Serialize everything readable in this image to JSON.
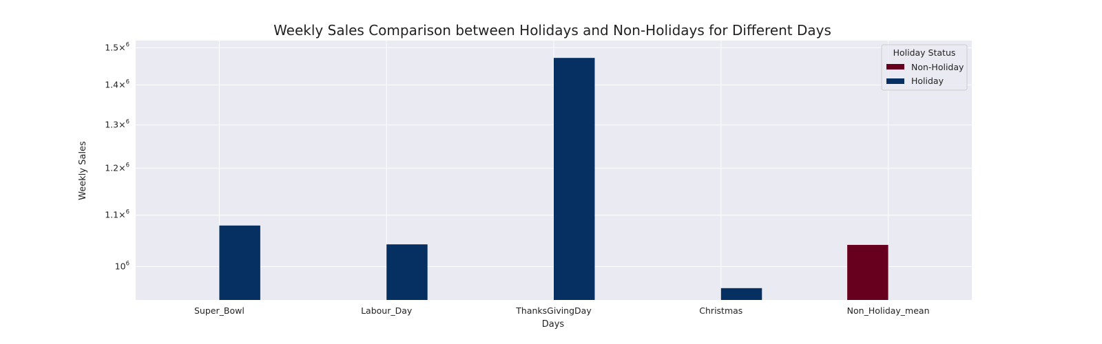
{
  "chart_data": {
    "type": "bar",
    "title": "Weekly Sales Comparison between Holidays and Non-Holidays for Different Days",
    "xlabel": "Days",
    "ylabel": "Weekly Sales",
    "yscale": "log",
    "ylim": [
      940000,
      1520000
    ],
    "yticks": [
      {
        "value": 1000000,
        "mant": "10",
        "times": "",
        "exp": "6"
      },
      {
        "value": 1100000,
        "mant": "1.1",
        "times": "×",
        "exp": "6"
      },
      {
        "value": 1200000,
        "mant": "1.2",
        "times": "×",
        "exp": "6"
      },
      {
        "value": 1300000,
        "mant": "1.3",
        "times": "×",
        "exp": "6"
      },
      {
        "value": 1400000,
        "mant": "1.4",
        "times": "×",
        "exp": "6"
      },
      {
        "value": 1500000,
        "mant": "1.5",
        "times": "×",
        "exp": "6"
      }
    ],
    "categories": [
      "Super_Bowl",
      "Labour_Day",
      "ThanksGivingDay",
      "Christmas",
      "Non_Holiday_mean"
    ],
    "series": [
      {
        "name": "Non-Holiday",
        "color": "#67001f",
        "values": [
          null,
          null,
          null,
          null,
          1041000
        ]
      },
      {
        "name": "Holiday",
        "color": "#053061",
        "values": [
          1079000,
          1042000,
          1472000,
          960800,
          null
        ]
      }
    ],
    "legend": {
      "title": "Holiday Status",
      "position": "top-right"
    },
    "grid": true,
    "style": {
      "plot_background": "#eaeaf2",
      "grid_color": "#ffffff"
    }
  }
}
